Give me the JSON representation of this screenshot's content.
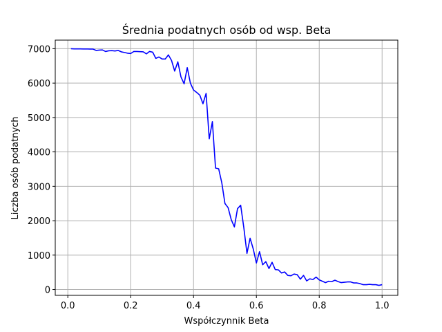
{
  "chart_data": {
    "type": "line",
    "title": "Średnia podatnych osób od wsp. Beta",
    "xlabel": "Współczynnik Beta",
    "ylabel": "Liczba osób podatnych",
    "xlim": [
      -0.04,
      1.05
    ],
    "ylim": [
      -170,
      7250
    ],
    "xticks": [
      0.0,
      0.2,
      0.4,
      0.6,
      0.8,
      1.0
    ],
    "xtick_labels": [
      "0.0",
      "0.2",
      "0.4",
      "0.6",
      "0.8",
      "1.0"
    ],
    "yticks": [
      0,
      1000,
      2000,
      3000,
      4000,
      5000,
      6000,
      7000
    ],
    "ytick_labels": [
      "0",
      "1000",
      "2000",
      "3000",
      "4000",
      "5000",
      "6000",
      "7000"
    ],
    "grid": true,
    "series": [
      {
        "color": "#0000ff",
        "x": [
          0.01,
          0.02,
          0.03,
          0.04,
          0.05,
          0.06,
          0.07,
          0.08,
          0.09,
          0.1,
          0.11,
          0.12,
          0.13,
          0.14,
          0.15,
          0.16,
          0.17,
          0.18,
          0.19,
          0.2,
          0.21,
          0.22,
          0.23,
          0.24,
          0.25,
          0.26,
          0.27,
          0.28,
          0.29,
          0.3,
          0.31,
          0.32,
          0.33,
          0.34,
          0.35,
          0.36,
          0.37,
          0.38,
          0.39,
          0.4,
          0.41,
          0.42,
          0.43,
          0.44,
          0.45,
          0.46,
          0.47,
          0.48,
          0.49,
          0.5,
          0.51,
          0.52,
          0.53,
          0.54,
          0.55,
          0.56,
          0.57,
          0.58,
          0.59,
          0.6,
          0.61,
          0.62,
          0.63,
          0.64,
          0.65,
          0.66,
          0.67,
          0.68,
          0.69,
          0.7,
          0.71,
          0.72,
          0.73,
          0.74,
          0.75,
          0.76,
          0.77,
          0.78,
          0.79,
          0.8,
          0.81,
          0.82,
          0.83,
          0.84,
          0.85,
          0.86,
          0.87,
          0.88,
          0.89,
          0.9,
          0.91,
          0.92,
          0.93,
          0.94,
          0.95,
          0.96,
          0.97,
          0.98,
          0.99,
          1.0
        ],
        "y": [
          7000,
          6995,
          6995,
          6995,
          6993,
          6993,
          6990,
          6990,
          6950,
          6960,
          6965,
          6920,
          6940,
          6945,
          6935,
          6950,
          6910,
          6890,
          6870,
          6860,
          6920,
          6920,
          6915,
          6910,
          6850,
          6920,
          6900,
          6720,
          6760,
          6700,
          6700,
          6820,
          6660,
          6350,
          6620,
          6180,
          5980,
          6450,
          6000,
          5800,
          5730,
          5650,
          5400,
          5700,
          4380,
          4880,
          3530,
          3510,
          3100,
          2500,
          2380,
          2030,
          1820,
          2350,
          2450,
          1800,
          1050,
          1490,
          1180,
          770,
          1100,
          720,
          810,
          610,
          790,
          580,
          570,
          480,
          510,
          410,
          400,
          450,
          430,
          300,
          410,
          250,
          310,
          290,
          360,
          280,
          240,
          200,
          240,
          230,
          270,
          230,
          200,
          210,
          220,
          220,
          190,
          190,
          170,
          140,
          140,
          150,
          140,
          140,
          120,
          140
        ]
      }
    ]
  }
}
